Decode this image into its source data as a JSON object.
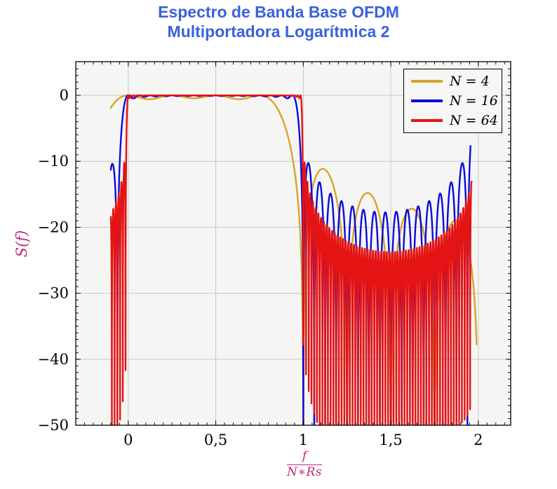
{
  "chart_data": {
    "type": "line",
    "title_line1": "Espectro de Banda Base OFDM",
    "title_line2": "Multiportadora Logarítmica 2",
    "ylabel": "S(f)",
    "xlabel_numerator": "f",
    "xlabel_denominator": "N∗Rs",
    "xlim": [
      -0.3,
      2.185
    ],
    "ylim": [
      -50,
      5.1
    ],
    "x_major_ticks": [
      0,
      0.5,
      1,
      1.5,
      2
    ],
    "x_tick_labels": [
      "0",
      "0,5",
      "1",
      "1,5",
      "2"
    ],
    "x_minor_step": 0.05,
    "y_major_ticks": [
      0,
      -10,
      -20,
      -30,
      -40,
      -50
    ],
    "y_tick_labels": [
      "0",
      "−10",
      "−20",
      "−30",
      "−40",
      "−50"
    ],
    "y_minor_step": 1,
    "grid": "major",
    "legend": {
      "position": "top-right"
    },
    "model": "S_dB(u) = 10*log10( sum_{k=0..N-1} sinc^2(N*u - k) [ + sinc^2(N*(u-2) - k) if replica ] ), u = f/(N*Rs), clipped at -50 dB",
    "series": [
      {
        "name": "N = 4",
        "N": 4,
        "color": "#D6A428",
        "x_start": -0.1,
        "x_end": 1.99,
        "replica": false,
        "samples": 2600
      },
      {
        "name": "N = 16",
        "N": 16,
        "color": "#0B0BDD",
        "x_start": -0.1,
        "x_end": 1.9555,
        "replica": true,
        "samples": 4600
      },
      {
        "name": "N = 64",
        "N": 64,
        "color": "#E41414",
        "x_start": -0.1,
        "x_end": 1.962,
        "replica": true,
        "samples": 6200
      }
    ],
    "observed_features": {
      "passband_level_db": 0,
      "passband_range_x": [
        0,
        1
      ],
      "value_at_left_edge_db": {
        "N = 4": -1.9,
        "N = 16": -11.3,
        "N = 64": -18.8
      },
      "first_sidelobe_db": {
        "N = 4": -11.5,
        "N = 16": -13.5,
        "N = 64": -12.5
      },
      "right_edge_spike": {
        "at_x": 1.96,
        "N = 16": -7.5,
        "N = 64": -14.5
      },
      "clip_floor_db": -50
    },
    "style": {
      "title_color": "#3A62D9",
      "axis_label_color": "#C7257E",
      "tick_label_color": "#000000",
      "grid_color": "#C8C8C8",
      "plot_background": "#F5F5F3",
      "figure_background": "#FFFFFF",
      "frame_color": "#000000",
      "legend_background": "#F6F6F4"
    }
  }
}
